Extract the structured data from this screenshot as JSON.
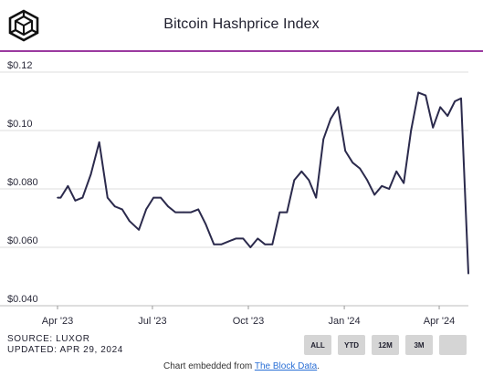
{
  "header": {
    "title": "Bitcoin Hashprice Index",
    "logo_icon": "isometric-cube-logo",
    "accent_color": "#9b3aa0"
  },
  "chart_data": {
    "type": "line",
    "title": "Bitcoin Hashprice Index",
    "xlabel": "",
    "ylabel": "",
    "ylim": [
      0.04,
      0.125
    ],
    "y_ticks": [
      0.04,
      0.06,
      0.08,
      0.1,
      0.12
    ],
    "y_tick_labels": [
      "$0.040",
      "$0.060",
      "$0.080",
      "$0.10",
      "$0.12"
    ],
    "x_ticks": [
      "2023-04-01",
      "2023-07-01",
      "2023-10-01",
      "2024-01-01",
      "2024-04-01"
    ],
    "x_tick_labels": [
      "Apr '23",
      "Jul '23",
      "Oct '23",
      "Jan '24",
      "Apr '24"
    ],
    "xlim": [
      "2023-04-01",
      "2024-04-29"
    ],
    "grid": true,
    "line_color": "#2b2a4c",
    "series": [
      {
        "x": [
          "2023-04-01",
          "2023-04-04",
          "2023-04-11",
          "2023-04-18",
          "2023-04-25",
          "2023-05-03",
          "2023-05-11",
          "2023-05-19",
          "2023-05-26",
          "2023-06-02",
          "2023-06-09",
          "2023-06-18",
          "2023-06-25",
          "2023-07-02",
          "2023-07-09",
          "2023-07-16",
          "2023-07-23",
          "2023-07-31",
          "2023-08-07",
          "2023-08-14",
          "2023-08-21",
          "2023-08-29",
          "2023-09-05",
          "2023-09-12",
          "2023-09-19",
          "2023-09-26",
          "2023-10-03",
          "2023-10-10",
          "2023-10-17",
          "2023-10-24",
          "2023-10-31",
          "2023-11-07",
          "2023-11-14",
          "2023-11-21",
          "2023-11-28",
          "2023-12-05",
          "2023-12-12",
          "2023-12-19",
          "2023-12-26",
          "2024-01-02",
          "2024-01-09",
          "2024-01-16",
          "2024-01-23",
          "2024-01-30",
          "2024-02-06",
          "2024-02-13",
          "2024-02-20",
          "2024-02-27",
          "2024-03-05",
          "2024-03-12",
          "2024-03-19",
          "2024-03-26",
          "2024-04-02",
          "2024-04-09",
          "2024-04-16",
          "2024-04-22",
          "2024-04-29"
        ],
        "y": [
          0.077,
          0.077,
          0.081,
          0.076,
          0.077,
          0.085,
          0.096,
          0.077,
          0.074,
          0.073,
          0.069,
          0.066,
          0.073,
          0.077,
          0.077,
          0.074,
          0.072,
          0.072,
          0.072,
          0.073,
          0.068,
          0.061,
          0.061,
          0.062,
          0.063,
          0.063,
          0.06,
          0.063,
          0.061,
          0.061,
          0.072,
          0.072,
          0.083,
          0.086,
          0.083,
          0.077,
          0.097,
          0.104,
          0.108,
          0.093,
          0.089,
          0.087,
          0.083,
          0.078,
          0.081,
          0.08,
          0.086,
          0.082,
          0.1,
          0.113,
          0.112,
          0.101,
          0.108,
          0.105,
          0.11,
          0.111,
          0.051
        ]
      }
    ]
  },
  "footer": {
    "source": "SOURCE: LUXOR",
    "updated": "UPDATED: APR 29, 2024",
    "range_buttons": [
      "ALL",
      "YTD",
      "12M",
      "3M",
      ""
    ],
    "embed_text": "Chart embedded from ",
    "embed_link": "The Block Data",
    "embed_suffix": "."
  }
}
